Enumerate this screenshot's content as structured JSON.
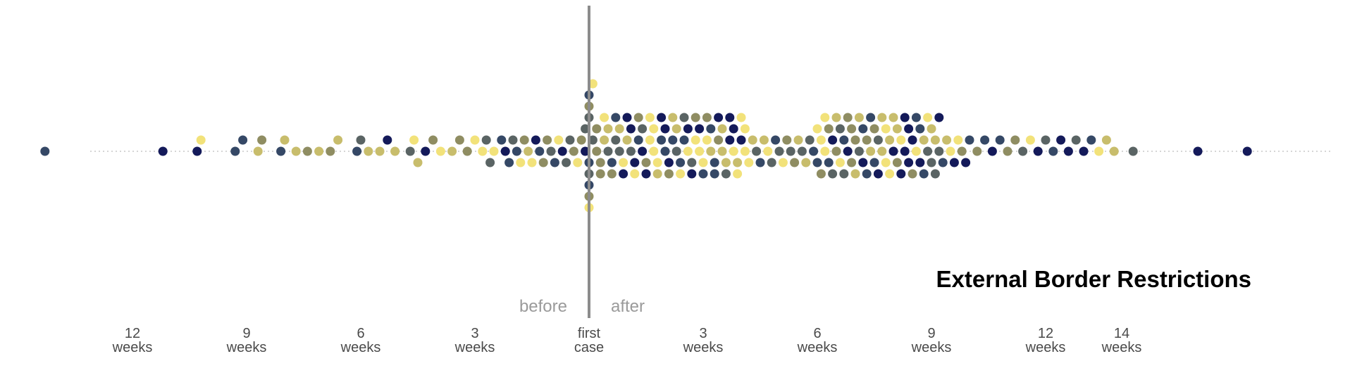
{
  "chart_data": {
    "type": "scatter",
    "title": "External Border Restrictions",
    "x_unit": "weeks relative to first case",
    "xlim": [
      -17,
      19
    ],
    "zero_marker": {
      "before_label": "before",
      "after_label": "after"
    },
    "ticks": [
      {
        "value": -12,
        "top": "12",
        "bottom": "weeks"
      },
      {
        "value": -9,
        "top": "9",
        "bottom": "weeks"
      },
      {
        "value": -6,
        "top": "6",
        "bottom": "weeks"
      },
      {
        "value": -3,
        "top": "3",
        "bottom": "weeks"
      },
      {
        "value": 0,
        "top": "first",
        "bottom": "case"
      },
      {
        "value": 3,
        "top": "3",
        "bottom": "weeks"
      },
      {
        "value": 6,
        "top": "6",
        "bottom": "weeks"
      },
      {
        "value": 9,
        "top": "9",
        "bottom": "weeks"
      },
      {
        "value": 12,
        "top": "12",
        "bottom": "weeks"
      },
      {
        "value": 14,
        "top": "14",
        "bottom": "weeks"
      }
    ],
    "colors": [
      "#141a5a",
      "#354866",
      "#5a6464",
      "#8f8d62",
      "#c8bd6c",
      "#f2e27a"
    ],
    "x": [
      -14.3,
      -11.2,
      -10.3,
      -10.2,
      -9.3,
      -9.1,
      -8.7,
      -8.6,
      -8.1,
      -8.0,
      -7.7,
      -7.4,
      -7.1,
      -6.8,
      -6.6,
      -6.1,
      -6.0,
      -5.8,
      -5.5,
      -5.3,
      -5.1,
      -4.7,
      -4.6,
      -4.5,
      -4.3,
      -4.1,
      -3.9,
      -3.6,
      -3.4,
      -3.2,
      -3.0,
      -2.8,
      -2.7,
      -2.6,
      -2.5,
      -2.3,
      -2.2,
      -2.1,
      -2.0,
      -1.9,
      -1.8,
      -1.7,
      -1.6,
      -1.5,
      -1.4,
      -1.3,
      -1.2,
      -1.1,
      -1.0,
      -0.9,
      -0.8,
      -0.7,
      -0.6,
      -0.5,
      -0.4,
      -0.3,
      -0.2,
      -0.1,
      -0.1,
      0.0,
      0.0,
      0.0,
      0.0,
      0.0,
      0.0,
      0.0,
      0.0,
      0.1,
      0.1,
      0.2,
      0.2,
      0.3,
      0.3,
      0.4,
      0.4,
      0.5,
      0.5,
      0.6,
      0.6,
      0.7,
      0.7,
      0.8,
      0.8,
      0.9,
      0.9,
      1.0,
      1.0,
      1.1,
      1.1,
      1.2,
      1.2,
      1.3,
      1.3,
      1.4,
      1.4,
      1.5,
      1.5,
      1.6,
      1.6,
      1.7,
      1.7,
      1.8,
      1.8,
      1.9,
      1.9,
      2.0,
      2.0,
      2.1,
      2.1,
      2.2,
      2.2,
      2.3,
      2.3,
      2.4,
      2.4,
      2.5,
      2.5,
      2.6,
      2.6,
      2.7,
      2.7,
      2.8,
      2.8,
      2.9,
      2.9,
      3.0,
      3.0,
      3.1,
      3.1,
      3.2,
      3.2,
      3.3,
      3.3,
      3.4,
      3.4,
      3.5,
      3.5,
      3.6,
      3.6,
      3.7,
      3.7,
      3.8,
      3.8,
      3.9,
      3.9,
      4.0,
      4.0,
      4.1,
      4.1,
      4.2,
      4.3,
      4.4,
      4.5,
      4.6,
      4.7,
      4.8,
      4.9,
      5.0,
      5.1,
      5.2,
      5.3,
      5.4,
      5.5,
      5.6,
      5.7,
      5.8,
      5.9,
      6.0,
      6.0,
      6.1,
      6.1,
      6.2,
      6.2,
      6.3,
      6.3,
      6.4,
      6.4,
      6.5,
      6.5,
      6.6,
      6.6,
      6.7,
      6.7,
      6.8,
      6.8,
      6.9,
      6.9,
      7.0,
      7.0,
      7.1,
      7.1,
      7.2,
      7.2,
      7.3,
      7.3,
      7.4,
      7.4,
      7.5,
      7.5,
      7.6,
      7.6,
      7.7,
      7.7,
      7.8,
      7.8,
      7.9,
      7.9,
      8.0,
      8.0,
      8.1,
      8.1,
      8.2,
      8.2,
      8.3,
      8.3,
      8.4,
      8.4,
      8.5,
      8.5,
      8.6,
      8.6,
      8.7,
      8.7,
      8.8,
      8.8,
      8.9,
      8.9,
      9.0,
      9.0,
      9.1,
      9.1,
      9.2,
      9.2,
      9.3,
      9.4,
      9.5,
      9.6,
      9.7,
      9.8,
      9.9,
      10.0,
      10.2,
      10.4,
      10.6,
      10.8,
      11.0,
      11.2,
      11.4,
      11.6,
      11.8,
      12.0,
      12.2,
      12.4,
      12.6,
      12.8,
      13.0,
      13.2,
      13.4,
      13.6,
      13.8,
      14.3,
      16.0,
      17.3
    ],
    "marker_color": "#141a5a"
  }
}
